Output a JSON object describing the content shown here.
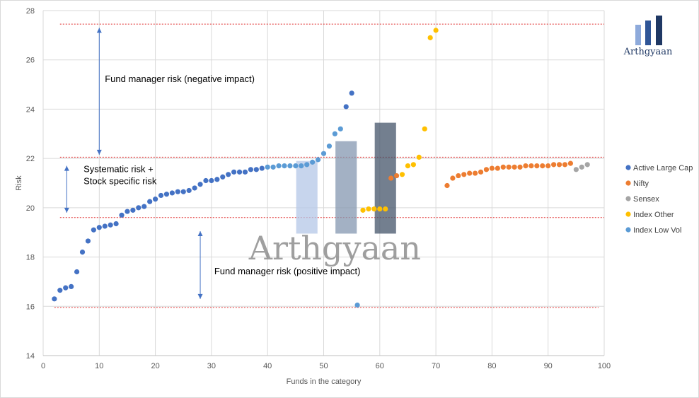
{
  "chart_data": {
    "type": "scatter",
    "title": "",
    "xlabel": "Funds in the  category",
    "ylabel": "Risk",
    "xlim": [
      0,
      100
    ],
    "ylim": [
      14,
      28
    ],
    "x_ticks": [
      0,
      10,
      20,
      30,
      40,
      50,
      60,
      70,
      80,
      90,
      100
    ],
    "y_ticks": [
      14,
      16,
      18,
      20,
      22,
      24,
      26,
      28
    ],
    "grid": true,
    "legend_position": "right",
    "series": [
      {
        "name": "Active Large Cap",
        "color": "#4472c4",
        "points": [
          [
            2,
            16.3
          ],
          [
            3,
            16.65
          ],
          [
            4,
            16.75
          ],
          [
            5,
            16.8
          ],
          [
            6,
            17.4
          ],
          [
            7,
            18.2
          ],
          [
            8,
            18.65
          ],
          [
            9,
            19.1
          ],
          [
            10,
            19.2
          ],
          [
            11,
            19.25
          ],
          [
            12,
            19.3
          ],
          [
            13,
            19.35
          ],
          [
            14,
            19.7
          ],
          [
            15,
            19.85
          ],
          [
            16,
            19.9
          ],
          [
            17,
            20.0
          ],
          [
            18,
            20.05
          ],
          [
            19,
            20.25
          ],
          [
            20,
            20.35
          ],
          [
            21,
            20.5
          ],
          [
            22,
            20.55
          ],
          [
            23,
            20.6
          ],
          [
            24,
            20.65
          ],
          [
            25,
            20.65
          ],
          [
            26,
            20.7
          ],
          [
            27,
            20.8
          ],
          [
            28,
            20.95
          ],
          [
            29,
            21.1
          ],
          [
            30,
            21.1
          ],
          [
            31,
            21.15
          ],
          [
            32,
            21.25
          ],
          [
            33,
            21.35
          ],
          [
            34,
            21.45
          ],
          [
            35,
            21.45
          ],
          [
            36,
            21.45
          ],
          [
            37,
            21.55
          ],
          [
            38,
            21.55
          ],
          [
            39,
            21.6
          ],
          [
            54,
            24.1
          ],
          [
            55,
            24.65
          ]
        ]
      },
      {
        "name": "Nifty",
        "color": "#ed7d31",
        "points": [
          [
            62,
            21.2
          ],
          [
            63,
            21.3
          ],
          [
            72,
            20.9
          ],
          [
            73,
            21.2
          ],
          [
            74,
            21.3
          ],
          [
            75,
            21.35
          ],
          [
            76,
            21.4
          ],
          [
            77,
            21.4
          ],
          [
            78,
            21.45
          ],
          [
            79,
            21.55
          ],
          [
            80,
            21.6
          ],
          [
            81,
            21.6
          ],
          [
            82,
            21.65
          ],
          [
            83,
            21.65
          ],
          [
            84,
            21.65
          ],
          [
            85,
            21.65
          ],
          [
            86,
            21.7
          ],
          [
            87,
            21.7
          ],
          [
            88,
            21.7
          ],
          [
            89,
            21.7
          ],
          [
            90,
            21.7
          ],
          [
            91,
            21.75
          ],
          [
            92,
            21.75
          ],
          [
            93,
            21.75
          ],
          [
            94,
            21.8
          ]
        ]
      },
      {
        "name": "Sensex",
        "color": "#a5a5a5",
        "points": [
          [
            95,
            21.55
          ],
          [
            96,
            21.65
          ],
          [
            97,
            21.75
          ]
        ]
      },
      {
        "name": "Index Other",
        "color": "#ffc000",
        "points": [
          [
            57,
            19.9
          ],
          [
            58,
            19.95
          ],
          [
            59,
            19.95
          ],
          [
            60,
            19.95
          ],
          [
            61,
            19.95
          ],
          [
            64,
            21.35
          ],
          [
            65,
            21.7
          ],
          [
            66,
            21.75
          ],
          [
            67,
            22.05
          ],
          [
            68,
            23.2
          ],
          [
            69,
            26.9
          ],
          [
            70,
            27.2
          ]
        ]
      },
      {
        "name": "Index Low Vol",
        "color": "#5b9bd5",
        "points": [
          [
            40,
            21.65
          ],
          [
            41,
            21.65
          ],
          [
            42,
            21.7
          ],
          [
            43,
            21.7
          ],
          [
            44,
            21.7
          ],
          [
            45,
            21.7
          ],
          [
            46,
            21.7
          ],
          [
            47,
            21.75
          ],
          [
            48,
            21.85
          ],
          [
            49,
            21.95
          ],
          [
            50,
            22.2
          ],
          [
            51,
            22.5
          ],
          [
            52,
            23.0
          ],
          [
            53,
            23.2
          ],
          [
            56,
            16.05
          ]
        ]
      }
    ],
    "reference_lines": [
      27.45,
      22.05,
      19.6,
      15.95
    ],
    "annotations": [
      {
        "text": "Fund manager risk (negative impact)",
        "x": 11,
        "y": 25.1
      },
      {
        "text": "Systematic risk  +",
        "x": 7.2,
        "y": 21.45
      },
      {
        "text": "Stock specific risk",
        "x": 7.2,
        "y": 20.95
      },
      {
        "text": "Fund manager risk (positive impact)",
        "x": 30.5,
        "y": 17.3
      }
    ],
    "arrows": [
      {
        "x": 10,
        "y_from": 22.15,
        "y_to": 27.3
      },
      {
        "x": 4.2,
        "y_from": 19.8,
        "y_to": 21.7
      },
      {
        "x": 28,
        "y_from": 16.3,
        "y_to": 19.05
      }
    ],
    "overlay_bars": [
      {
        "x_center": 47,
        "top": 21.9,
        "color": "#b4c7e7"
      },
      {
        "x_center": 54,
        "top": 22.7,
        "color": "#8497b0"
      },
      {
        "x_center": 61,
        "top": 23.45,
        "color": "#44546a"
      }
    ],
    "overlay_bar_base": 18.95
  },
  "watermark": {
    "text": "Arthgyaan",
    "x": 52,
    "y": 17.9
  },
  "logo": {
    "text": "Arthgyaan",
    "colors": [
      "#8eaadb",
      "#2f5597",
      "#1f3864"
    ]
  }
}
